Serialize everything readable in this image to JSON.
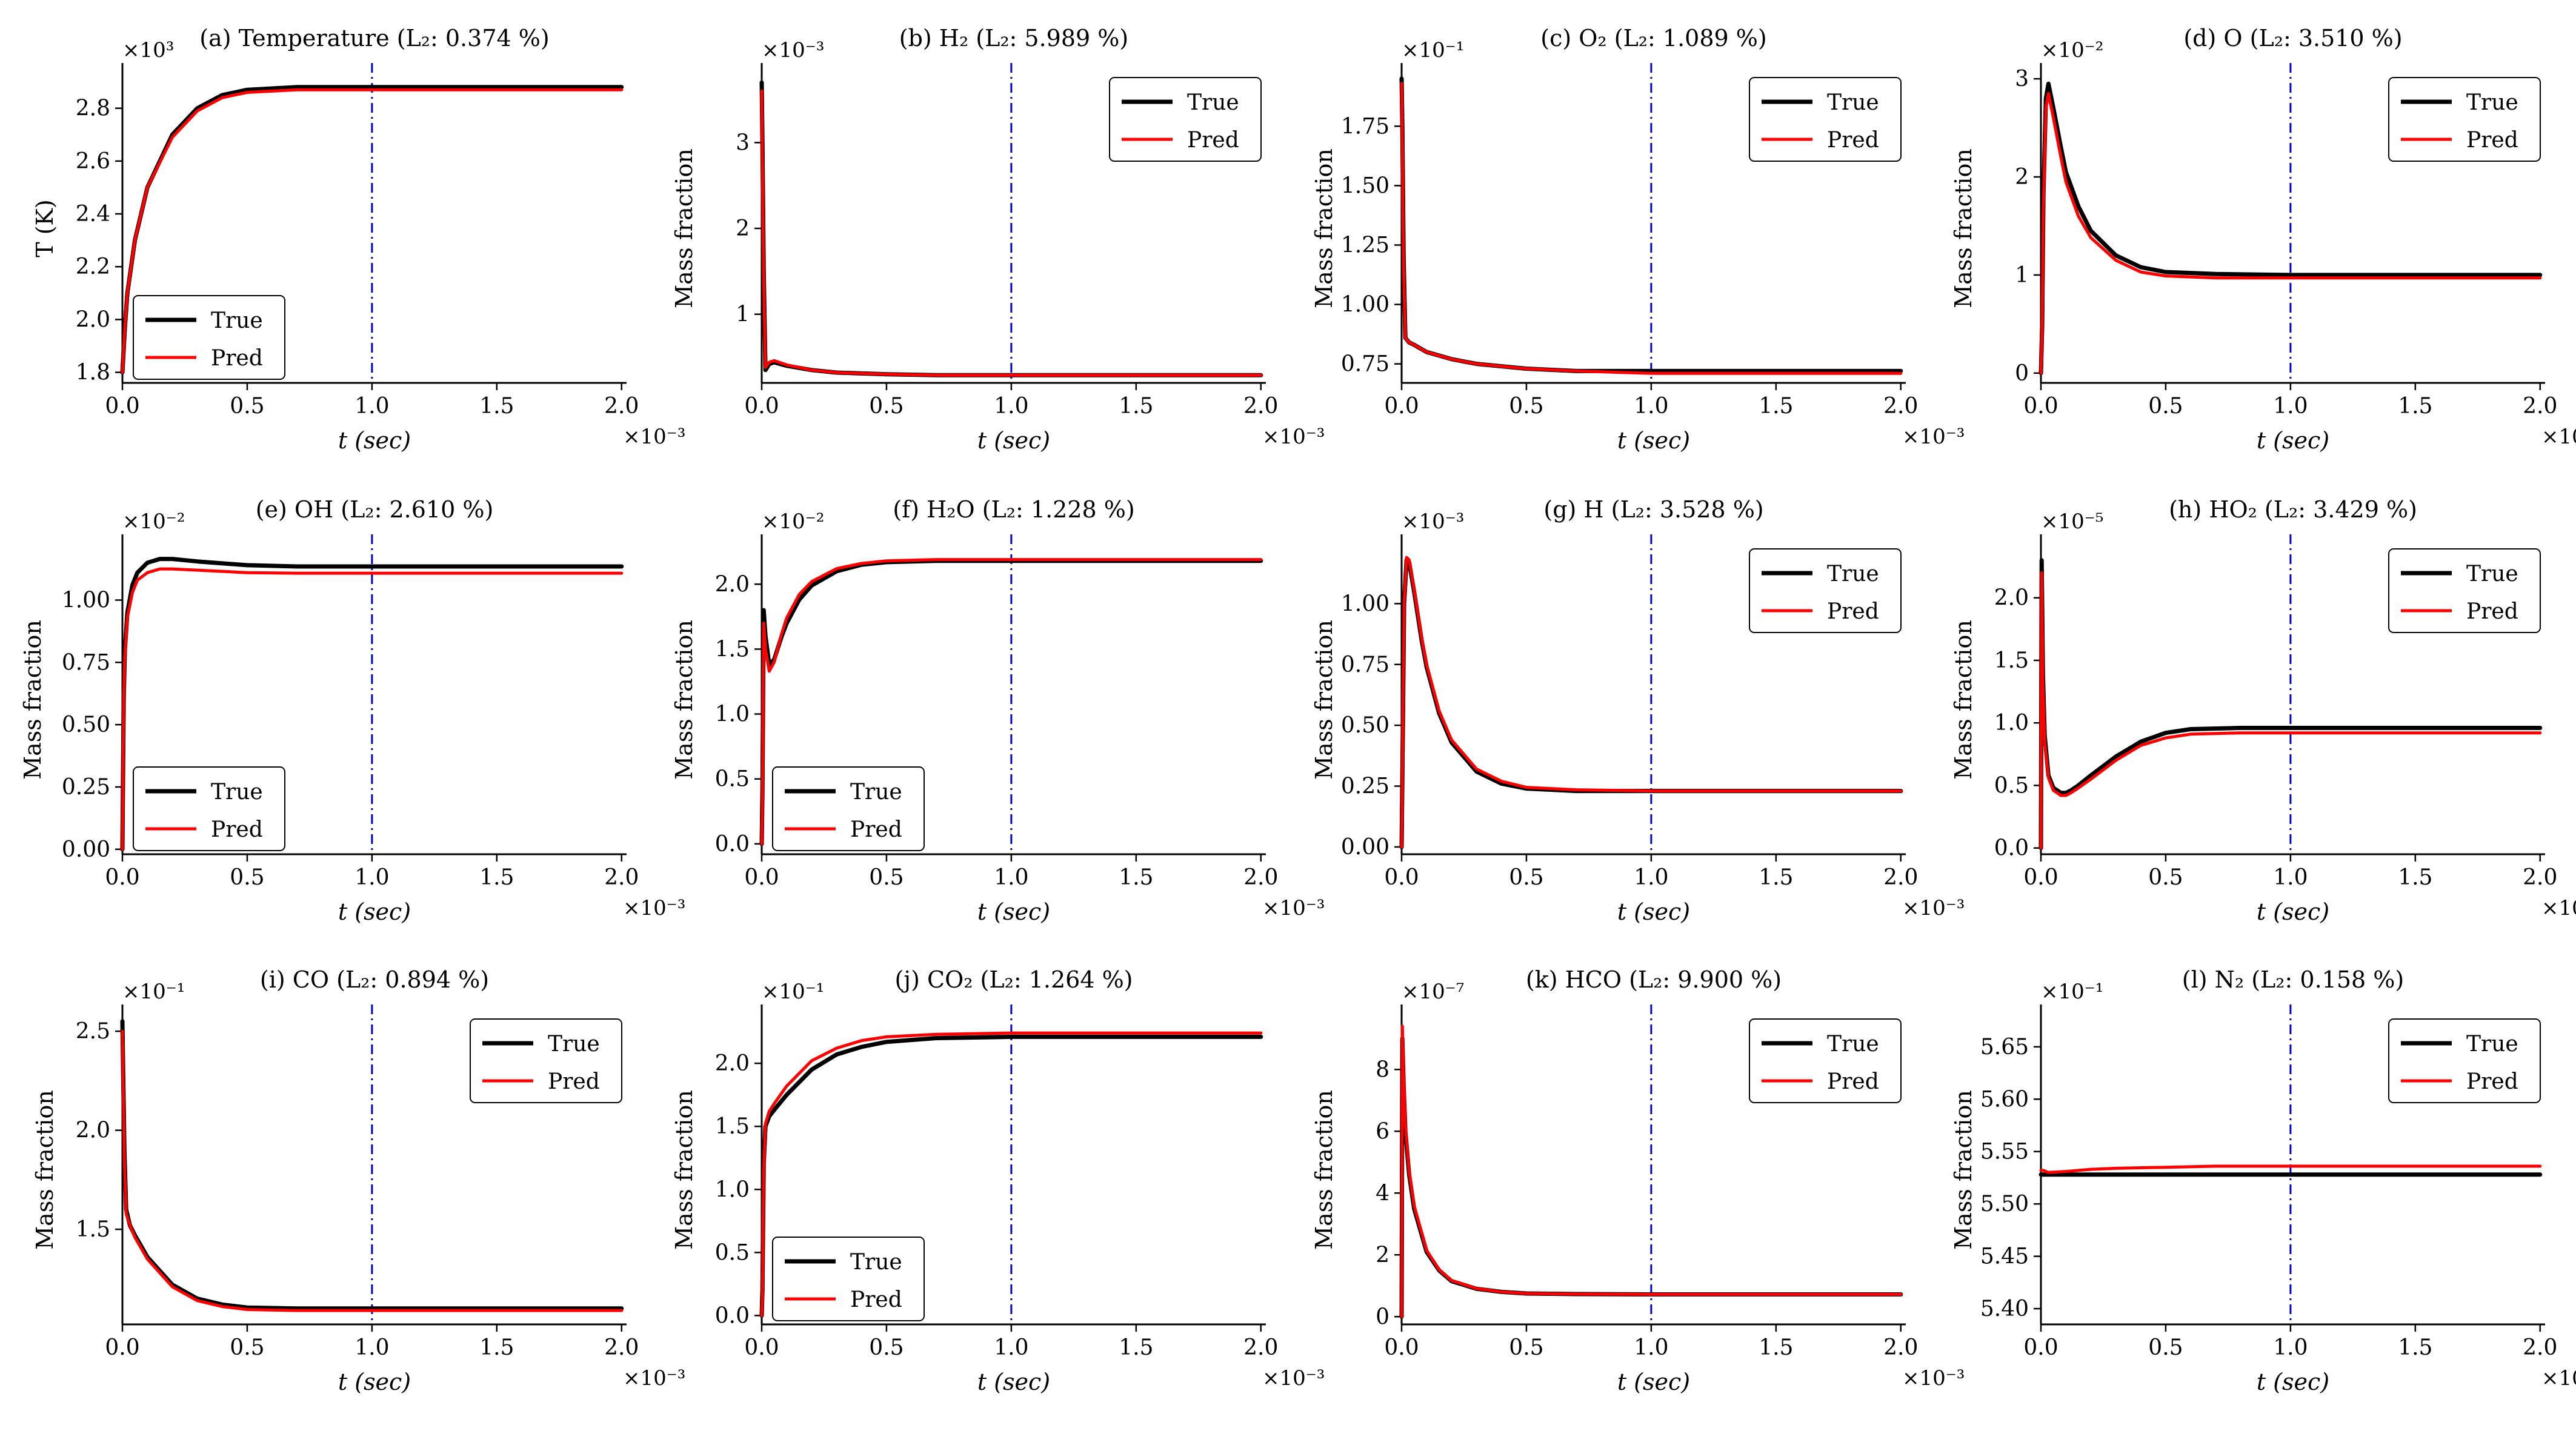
{
  "figure": {
    "xlabel": "t (sec)",
    "x_multiplier": "×10⁻³",
    "x_ticks": [
      "0.0",
      "0.5",
      "1.0",
      "1.5",
      "2.0"
    ],
    "xlim": [
      0,
      2.02
    ],
    "vline_x": 1.0,
    "legend_labels": [
      "True",
      "Pred"
    ],
    "colors": {
      "true": "#000000",
      "pred": "#ff0000",
      "vline": "#0000cc"
    }
  },
  "chart_data": [
    {
      "id": "a",
      "type": "line",
      "title": "(a) Temperature (L₂: 0.374 %)",
      "ylabel": "T (K)",
      "y_multiplier": "×10³",
      "ylim": [
        1.76,
        2.93
      ],
      "yticks": [
        1.8,
        2.0,
        2.2,
        2.4,
        2.6,
        2.8
      ],
      "ytick_labels": [
        "1.8",
        "2.0",
        "2.2",
        "2.4",
        "2.6",
        "2.8"
      ],
      "legend": "lower-left",
      "x": [
        0,
        0.01,
        0.02,
        0.05,
        0.1,
        0.2,
        0.3,
        0.4,
        0.5,
        0.7,
        1.0,
        1.5,
        2.0
      ],
      "series": [
        {
          "name": "True",
          "values": [
            1.8,
            1.97,
            2.1,
            2.3,
            2.5,
            2.7,
            2.8,
            2.85,
            2.87,
            2.88,
            2.88,
            2.88,
            2.88
          ]
        },
        {
          "name": "Pred",
          "values": [
            1.8,
            1.97,
            2.1,
            2.3,
            2.5,
            2.69,
            2.79,
            2.84,
            2.86,
            2.87,
            2.87,
            2.87,
            2.87
          ]
        }
      ]
    },
    {
      "id": "b",
      "type": "line",
      "title": "(b) H₂ (L₂: 5.989 %)",
      "ylabel": "Mass fraction",
      "y_multiplier": "×10⁻³",
      "ylim": [
        0.2,
        3.8
      ],
      "yticks": [
        1,
        2,
        3
      ],
      "ytick_labels": [
        "1",
        "2",
        "3"
      ],
      "legend": "upper-right",
      "x": [
        0,
        0.003,
        0.008,
        0.015,
        0.03,
        0.05,
        0.1,
        0.2,
        0.3,
        0.5,
        0.7,
        1.0,
        1.5,
        2.0
      ],
      "series": [
        {
          "name": "True",
          "values": [
            3.7,
            3.0,
            1.5,
            0.35,
            0.42,
            0.44,
            0.4,
            0.35,
            0.32,
            0.3,
            0.29,
            0.29,
            0.29,
            0.29
          ]
        },
        {
          "name": "Pred",
          "values": [
            3.6,
            2.8,
            1.4,
            0.38,
            0.44,
            0.46,
            0.41,
            0.35,
            0.32,
            0.3,
            0.29,
            0.29,
            0.29,
            0.29
          ]
        }
      ]
    },
    {
      "id": "c",
      "type": "line",
      "title": "(c) O₂ (L₂: 1.089 %)",
      "ylabel": "Mass fraction",
      "y_multiplier": "×10⁻¹",
      "ylim": [
        0.67,
        1.97
      ],
      "yticks": [
        0.75,
        1.0,
        1.25,
        1.5,
        1.75
      ],
      "ytick_labels": [
        "0.75",
        "1.00",
        "1.25",
        "1.50",
        "1.75"
      ],
      "legend": "upper-right",
      "x": [
        0,
        0.003,
        0.008,
        0.015,
        0.03,
        0.05,
        0.1,
        0.2,
        0.3,
        0.5,
        0.7,
        1.0,
        1.5,
        2.0
      ],
      "series": [
        {
          "name": "True",
          "values": [
            1.95,
            1.75,
            1.2,
            0.86,
            0.84,
            0.83,
            0.8,
            0.77,
            0.75,
            0.73,
            0.72,
            0.72,
            0.72,
            0.72
          ]
        },
        {
          "name": "Pred",
          "values": [
            1.93,
            1.7,
            1.15,
            0.86,
            0.84,
            0.83,
            0.8,
            0.77,
            0.75,
            0.73,
            0.72,
            0.71,
            0.71,
            0.71
          ]
        }
      ]
    },
    {
      "id": "d",
      "type": "line",
      "title": "(d) O (L₂: 3.510 %)",
      "ylabel": "Mass fraction",
      "y_multiplier": "×10⁻²",
      "ylim": [
        -0.1,
        3.05
      ],
      "yticks": [
        0,
        1,
        2,
        3
      ],
      "ytick_labels": [
        "0",
        "1",
        "2",
        "3"
      ],
      "legend": "upper-right",
      "x": [
        0,
        0.005,
        0.01,
        0.02,
        0.03,
        0.05,
        0.08,
        0.1,
        0.15,
        0.2,
        0.3,
        0.4,
        0.5,
        0.7,
        1.0,
        1.5,
        2.0
      ],
      "series": [
        {
          "name": "True",
          "values": [
            0.0,
            0.5,
            1.8,
            2.8,
            2.95,
            2.7,
            2.3,
            2.05,
            1.7,
            1.45,
            1.2,
            1.08,
            1.03,
            1.01,
            1.0,
            1.0,
            1.0
          ]
        },
        {
          "name": "Pred",
          "values": [
            0.0,
            0.5,
            1.7,
            2.7,
            2.85,
            2.6,
            2.2,
            1.95,
            1.6,
            1.38,
            1.15,
            1.03,
            0.99,
            0.97,
            0.97,
            0.97,
            0.97
          ]
        }
      ]
    },
    {
      "id": "e",
      "type": "line",
      "title": "(e) OH (L₂: 2.610 %)",
      "ylabel": "Mass fraction",
      "y_multiplier": "×10⁻²",
      "ylim": [
        -0.02,
        1.22
      ],
      "yticks": [
        0,
        0.25,
        0.5,
        0.75,
        1.0
      ],
      "ytick_labels": [
        "0.00",
        "0.25",
        "0.50",
        "0.75",
        "1.00"
      ],
      "legend": "lower-left",
      "x": [
        0,
        0.005,
        0.01,
        0.02,
        0.04,
        0.06,
        0.1,
        0.15,
        0.2,
        0.3,
        0.5,
        0.7,
        1.0,
        1.5,
        2.0
      ],
      "series": [
        {
          "name": "True",
          "values": [
            0.0,
            0.6,
            0.8,
            0.95,
            1.06,
            1.11,
            1.15,
            1.165,
            1.165,
            1.155,
            1.14,
            1.135,
            1.135,
            1.135,
            1.135
          ]
        },
        {
          "name": "Pred",
          "values": [
            0.0,
            0.6,
            0.78,
            0.93,
            1.03,
            1.08,
            1.11,
            1.125,
            1.125,
            1.12,
            1.11,
            1.108,
            1.108,
            1.108,
            1.108
          ]
        }
      ]
    },
    {
      "id": "f",
      "type": "line",
      "title": "(f) H₂O (L₂: 1.228 %)",
      "ylabel": "Mass fraction",
      "y_multiplier": "×10⁻²",
      "ylim": [
        -0.08,
        2.3
      ],
      "yticks": [
        0,
        0.5,
        1.0,
        1.5,
        2.0
      ],
      "ytick_labels": [
        "0.0",
        "0.5",
        "1.0",
        "1.5",
        "2.0"
      ],
      "legend": "lower-left",
      "x": [
        0,
        0.003,
        0.008,
        0.015,
        0.03,
        0.05,
        0.08,
        0.1,
        0.15,
        0.2,
        0.3,
        0.4,
        0.5,
        0.7,
        1.0,
        1.5,
        2.0
      ],
      "series": [
        {
          "name": "True",
          "values": [
            0.0,
            0.4,
            1.8,
            1.6,
            1.38,
            1.42,
            1.6,
            1.7,
            1.88,
            1.99,
            2.1,
            2.15,
            2.17,
            2.18,
            2.18,
            2.18,
            2.18
          ]
        },
        {
          "name": "Pred",
          "values": [
            0.0,
            0.3,
            1.7,
            1.5,
            1.33,
            1.4,
            1.62,
            1.74,
            1.92,
            2.02,
            2.12,
            2.16,
            2.18,
            2.19,
            2.19,
            2.19,
            2.19
          ]
        }
      ]
    },
    {
      "id": "g",
      "type": "line",
      "title": "(g) H (L₂: 3.528 %)",
      "ylabel": "Mass fraction",
      "y_multiplier": "×10⁻³",
      "ylim": [
        -0.03,
        1.24
      ],
      "yticks": [
        0,
        0.25,
        0.5,
        0.75,
        1.0
      ],
      "ytick_labels": [
        "0.00",
        "0.25",
        "0.50",
        "0.75",
        "1.00"
      ],
      "legend": "upper-right",
      "x": [
        0,
        0.005,
        0.01,
        0.02,
        0.03,
        0.05,
        0.08,
        0.1,
        0.15,
        0.2,
        0.3,
        0.4,
        0.5,
        0.7,
        1.0,
        1.5,
        2.0
      ],
      "series": [
        {
          "name": "True",
          "values": [
            0.0,
            0.5,
            1.0,
            1.18,
            1.17,
            1.05,
            0.85,
            0.74,
            0.55,
            0.43,
            0.31,
            0.26,
            0.24,
            0.23,
            0.23,
            0.23,
            0.23
          ]
        },
        {
          "name": "Pred",
          "values": [
            0.0,
            0.5,
            1.0,
            1.19,
            1.18,
            1.06,
            0.86,
            0.75,
            0.56,
            0.44,
            0.32,
            0.27,
            0.245,
            0.235,
            0.23,
            0.23,
            0.23
          ]
        }
      ]
    },
    {
      "id": "h",
      "type": "line",
      "title": "(h) HO₂ (L₂: 3.429 %)",
      "ylabel": "Mass fraction",
      "y_multiplier": "×10⁻⁵",
      "ylim": [
        -0.05,
        2.42
      ],
      "yticks": [
        0,
        0.5,
        1.0,
        1.5,
        2.0
      ],
      "ytick_labels": [
        "0.0",
        "0.5",
        "1.0",
        "1.5",
        "2.0"
      ],
      "legend": "upper-right",
      "x": [
        0,
        0.003,
        0.008,
        0.015,
        0.03,
        0.05,
        0.08,
        0.1,
        0.12,
        0.15,
        0.2,
        0.3,
        0.4,
        0.5,
        0.6,
        0.8,
        1.0,
        1.5,
        2.0
      ],
      "series": [
        {
          "name": "True",
          "values": [
            0.0,
            2.3,
            1.4,
            0.9,
            0.58,
            0.48,
            0.44,
            0.44,
            0.46,
            0.5,
            0.58,
            0.73,
            0.85,
            0.92,
            0.95,
            0.96,
            0.96,
            0.96,
            0.96
          ]
        },
        {
          "name": "Pred",
          "values": [
            0.0,
            2.2,
            1.3,
            0.85,
            0.56,
            0.46,
            0.42,
            0.42,
            0.44,
            0.48,
            0.55,
            0.7,
            0.82,
            0.88,
            0.91,
            0.92,
            0.92,
            0.92,
            0.92
          ]
        }
      ]
    },
    {
      "id": "i",
      "type": "line",
      "title": "(i) CO (L₂: 0.894 %)",
      "ylabel": "Mass fraction",
      "y_multiplier": "×10⁻¹",
      "ylim": [
        1.02,
        2.58
      ],
      "yticks": [
        1.5,
        2.0,
        2.5
      ],
      "ytick_labels": [
        "1.5",
        "2.0",
        "2.5"
      ],
      "legend": "upper-right",
      "x": [
        0,
        0.003,
        0.008,
        0.015,
        0.03,
        0.05,
        0.1,
        0.2,
        0.3,
        0.4,
        0.5,
        0.7,
        1.0,
        1.5,
        2.0
      ],
      "series": [
        {
          "name": "True",
          "values": [
            2.55,
            2.3,
            1.9,
            1.6,
            1.52,
            1.47,
            1.36,
            1.22,
            1.15,
            1.12,
            1.105,
            1.1,
            1.1,
            1.1,
            1.1
          ]
        },
        {
          "name": "Pred",
          "values": [
            2.5,
            2.25,
            1.85,
            1.58,
            1.52,
            1.46,
            1.35,
            1.21,
            1.14,
            1.11,
            1.095,
            1.09,
            1.09,
            1.09,
            1.09
          ]
        }
      ]
    },
    {
      "id": "j",
      "type": "line",
      "title": "(j) CO₂ (L₂: 1.264 %)",
      "ylabel": "Mass fraction",
      "y_multiplier": "×10⁻¹",
      "ylim": [
        -0.07,
        2.38
      ],
      "yticks": [
        0,
        0.5,
        1.0,
        1.5,
        2.0
      ],
      "ytick_labels": [
        "0.0",
        "0.5",
        "1.0",
        "1.5",
        "2.0"
      ],
      "legend": "lower-left",
      "x": [
        0,
        0.003,
        0.008,
        0.015,
        0.03,
        0.05,
        0.1,
        0.2,
        0.3,
        0.4,
        0.5,
        0.7,
        1.0,
        1.5,
        2.0
      ],
      "series": [
        {
          "name": "True",
          "values": [
            0.0,
            0.2,
            1.2,
            1.5,
            1.58,
            1.63,
            1.75,
            1.95,
            2.07,
            2.13,
            2.17,
            2.2,
            2.21,
            2.21,
            2.21
          ]
        },
        {
          "name": "Pred",
          "values": [
            0.0,
            0.15,
            1.15,
            1.52,
            1.62,
            1.68,
            1.82,
            2.02,
            2.12,
            2.18,
            2.21,
            2.23,
            2.24,
            2.24,
            2.24
          ]
        }
      ]
    },
    {
      "id": "k",
      "type": "line",
      "title": "(k) HCO (L₂: 9.900 %)",
      "ylabel": "Mass fraction",
      "y_multiplier": "×10⁻⁷",
      "ylim": [
        -0.25,
        9.75
      ],
      "yticks": [
        0,
        2,
        4,
        6,
        8
      ],
      "ytick_labels": [
        "0",
        "2",
        "4",
        "6",
        "8"
      ],
      "legend": "upper-right",
      "x": [
        0,
        0.003,
        0.008,
        0.015,
        0.03,
        0.05,
        0.1,
        0.15,
        0.2,
        0.3,
        0.4,
        0.5,
        0.7,
        1.0,
        1.5,
        2.0
      ],
      "series": [
        {
          "name": "True",
          "values": [
            0.0,
            9.0,
            7.5,
            6.0,
            4.6,
            3.5,
            2.1,
            1.5,
            1.15,
            0.9,
            0.8,
            0.75,
            0.73,
            0.72,
            0.72,
            0.72
          ]
        },
        {
          "name": "Pred",
          "values": [
            0.0,
            9.4,
            7.8,
            6.2,
            4.7,
            3.6,
            2.15,
            1.52,
            1.17,
            0.91,
            0.8,
            0.75,
            0.73,
            0.72,
            0.72,
            0.72
          ]
        }
      ]
    },
    {
      "id": "l",
      "type": "line",
      "title": "(l) N₂ (L₂: 0.158 %)",
      "ylabel": "Mass fraction",
      "y_multiplier": "×10⁻¹",
      "ylim": [
        5.385,
        5.68
      ],
      "yticks": [
        5.4,
        5.45,
        5.5,
        5.55,
        5.6,
        5.65
      ],
      "ytick_labels": [
        "5.40",
        "5.45",
        "5.50",
        "5.55",
        "5.60",
        "5.65"
      ],
      "legend": "upper-right",
      "x": [
        0,
        0.01,
        0.03,
        0.1,
        0.2,
        0.3,
        0.5,
        0.7,
        1.0,
        1.5,
        2.0
      ],
      "series": [
        {
          "name": "True",
          "values": [
            5.528,
            5.528,
            5.528,
            5.528,
            5.528,
            5.528,
            5.528,
            5.528,
            5.528,
            5.528,
            5.528
          ]
        },
        {
          "name": "Pred",
          "values": [
            5.532,
            5.532,
            5.53,
            5.531,
            5.533,
            5.534,
            5.535,
            5.536,
            5.536,
            5.536,
            5.536
          ]
        }
      ]
    }
  ]
}
